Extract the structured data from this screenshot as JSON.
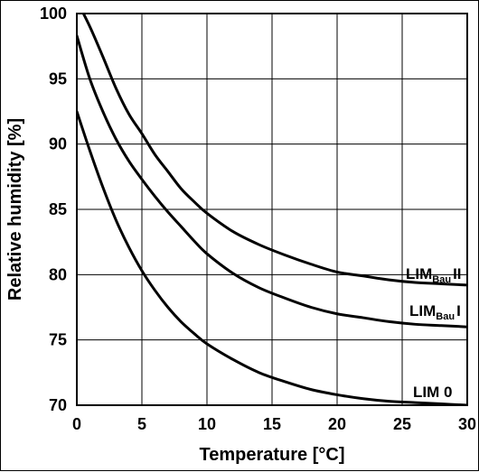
{
  "chart_data": {
    "type": "line",
    "xlabel": "Temperature [°C]",
    "ylabel": "Relative humidity [%]",
    "xlim": [
      0,
      30
    ],
    "ylim": [
      70,
      100
    ],
    "x_ticks": [
      0,
      5,
      10,
      15,
      20,
      25,
      30
    ],
    "y_ticks": [
      70,
      75,
      80,
      85,
      90,
      95,
      100
    ],
    "grid": true,
    "legend": "inline labels at right end of curves",
    "series": [
      {
        "name": "LIM 0",
        "label_main": "LIM 0",
        "label_sub": "",
        "label_suffix": "",
        "x": [
          0,
          1,
          2,
          3,
          4,
          5,
          6,
          7,
          8,
          9,
          10,
          12,
          14,
          16,
          18,
          20,
          22,
          24,
          26,
          28,
          30
        ],
        "y": [
          92.5,
          89.5,
          86.7,
          84.2,
          82.1,
          80.3,
          78.8,
          77.5,
          76.4,
          75.5,
          74.7,
          73.5,
          72.5,
          71.8,
          71.2,
          70.8,
          70.5,
          70.3,
          70.2,
          70.1,
          70.0
        ]
      },
      {
        "name": "LIMBau I",
        "label_main": "LIM",
        "label_sub": "Bau",
        "label_suffix": "I",
        "x": [
          0,
          1,
          2,
          3,
          4,
          5,
          6,
          7,
          8,
          9,
          10,
          12,
          14,
          16,
          18,
          20,
          22,
          24,
          26,
          28,
          30
        ],
        "y": [
          98.3,
          95.0,
          92.5,
          90.4,
          88.7,
          87.3,
          86.0,
          84.8,
          83.7,
          82.6,
          81.6,
          80.1,
          79.0,
          78.2,
          77.5,
          77.0,
          76.7,
          76.4,
          76.2,
          76.1,
          76.0
        ]
      },
      {
        "name": "LIMBau II",
        "label_main": "LIM",
        "label_sub": "Bau",
        "label_suffix": "II",
        "x": [
          0,
          1,
          2,
          3,
          4,
          5,
          6,
          7,
          8,
          9,
          10,
          12,
          14,
          16,
          18,
          20,
          22,
          24,
          26,
          28,
          30
        ],
        "y": [
          101.0,
          99.0,
          96.7,
          94.3,
          92.3,
          90.8,
          89.2,
          87.9,
          86.6,
          85.6,
          84.7,
          83.3,
          82.3,
          81.5,
          80.8,
          80.2,
          79.9,
          79.6,
          79.4,
          79.3,
          79.2
        ]
      }
    ]
  }
}
